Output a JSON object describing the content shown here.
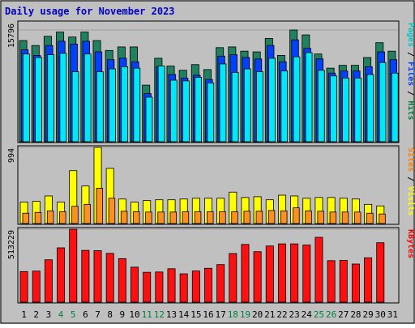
{
  "chart_data": {
    "type": "bar",
    "title": "Daily usage for November 2023",
    "categories": [
      "1",
      "2",
      "3",
      "4",
      "5",
      "6",
      "7",
      "8",
      "9",
      "10",
      "11",
      "12",
      "13",
      "14",
      "15",
      "16",
      "17",
      "18",
      "19",
      "20",
      "21",
      "22",
      "23",
      "24",
      "25",
      "26",
      "27",
      "28",
      "29",
      "30",
      "31"
    ],
    "weekend_categories": [
      "4",
      "5",
      "11",
      "12",
      "18",
      "19",
      "25",
      "26"
    ],
    "panels": [
      {
        "name": "hits-files-pages",
        "ymax_label": "15796",
        "ymax": 15796,
        "legend": [
          {
            "text": "Pages",
            "color": "#00c8c8"
          },
          {
            "text": " / ",
            "color": "#000000"
          },
          {
            "text": "Files",
            "color": "#0040ff"
          },
          {
            "text": " / ",
            "color": "#000000"
          },
          {
            "text": "Hits",
            "color": "#008040"
          }
        ],
        "series": [
          {
            "name": "Hits",
            "color": "#208060",
            "values": [
              14300,
              13600,
              14900,
              15500,
              14800,
              15500,
              14300,
              12900,
              13400,
              13400,
              8000,
              11800,
              10700,
              10100,
              10900,
              10200,
              13300,
              13400,
              12800,
              12700,
              14600,
              12200,
              15796,
              15100,
              12400,
              10400,
              10800,
              10800,
              11900,
              14000,
              12800
            ]
          },
          {
            "name": "Files",
            "color": "#0040ff",
            "values": [
              13000,
              12200,
              13600,
              14200,
              13800,
              14200,
              12700,
              11600,
              11800,
              11300,
              6800,
              10600,
              9500,
              9000,
              9400,
              8800,
              12100,
              12300,
              11900,
              11700,
              13600,
              11300,
              14400,
              13200,
              11700,
              9700,
              10000,
              10000,
              10600,
              12700,
              11600
            ]
          },
          {
            "name": "Pages",
            "color": "#00e8f8",
            "values": [
              12400,
              11900,
              12300,
              12500,
              9900,
              12400,
              9900,
              10300,
              10600,
              10400,
              6300,
              10700,
              8700,
              8600,
              9100,
              8300,
              11000,
              9800,
              10300,
              9900,
              11800,
              10000,
              12000,
              12600,
              10100,
              9300,
              9000,
              9000,
              9500,
              11200,
              9700
            ]
          }
        ]
      },
      {
        "name": "visits-sites",
        "ymax_label": "994",
        "ymax": 994,
        "legend": [
          {
            "text": "Sites",
            "color": "#ff8000"
          },
          {
            "text": " / ",
            "color": "#000000"
          },
          {
            "text": "Visits",
            "color": "#ffff00"
          }
        ],
        "series": [
          {
            "name": "Visits",
            "color": "#ffff00",
            "values": [
              280,
              290,
              360,
              280,
              690,
              490,
              994,
              720,
              320,
              280,
              300,
              310,
              310,
              320,
              330,
              330,
              330,
              410,
              340,
              350,
              310,
              370,
              360,
              330,
              340,
              340,
              330,
              320,
              250,
              230,
              0
            ]
          },
          {
            "name": "Sites",
            "color": "#ff9020",
            "values": [
              135,
              145,
              165,
              155,
              225,
              250,
              460,
              330,
              160,
              155,
              150,
              150,
              150,
              155,
              155,
              155,
              155,
              155,
              160,
              160,
              170,
              165,
              205,
              165,
              160,
              150,
              150,
              150,
              135,
              125,
              0
            ]
          }
        ]
      },
      {
        "name": "kbytes",
        "ymax_label": "513229",
        "ymax": 513229,
        "legend": [
          {
            "text": "KBytes",
            "color": "#ff0000"
          }
        ],
        "series": [
          {
            "name": "KBytes",
            "color": "#ff1010",
            "values": [
              215000,
              218000,
              298000,
              382000,
              513229,
              364000,
              362000,
              343000,
              306000,
              246000,
              210000,
              212000,
              235000,
              199000,
              219000,
              238000,
              264000,
              342000,
              406000,
              355000,
              395000,
              410000,
              410000,
              402000,
              456000,
              292000,
              294000,
              268000,
              312000,
              418000,
              0
            ]
          }
        ]
      }
    ]
  }
}
